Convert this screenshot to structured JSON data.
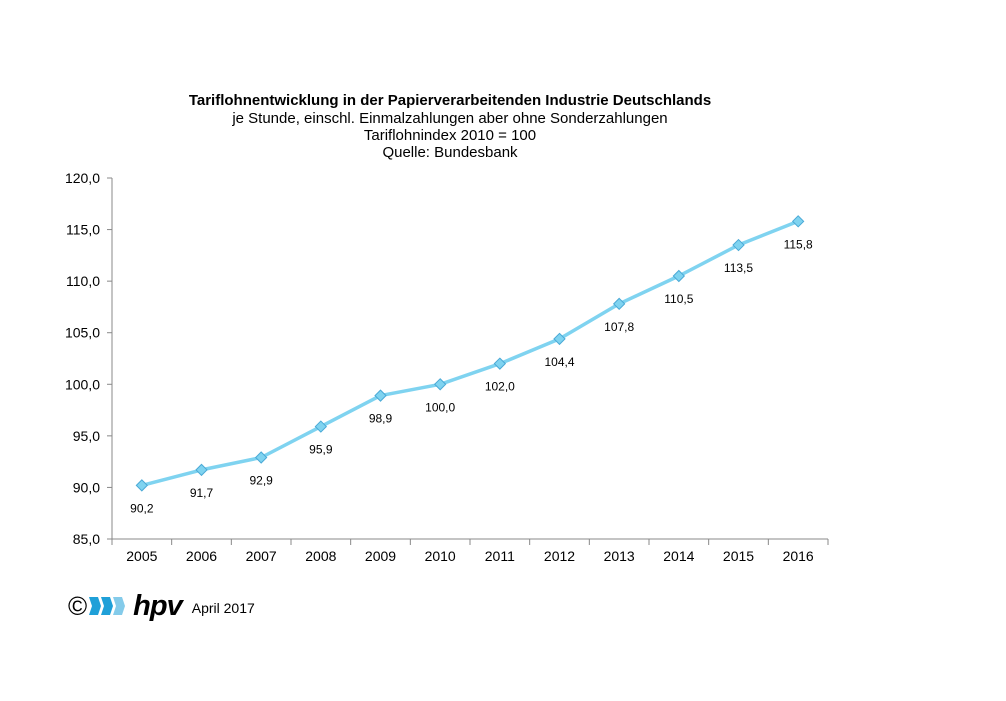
{
  "chart_data": {
    "type": "line",
    "title": "Tariflohnentwicklung  in der Papierverarbeitenden Industrie Deutschlands",
    "subtitles": [
      "je Stunde, einschl. Einmalzahlungen  aber ohne Sonderzahlungen",
      "Tariflohnindex  2010 = 100",
      "Quelle:  Bundesbank"
    ],
    "categories": [
      "2005",
      "2006",
      "2007",
      "2008",
      "2009",
      "2010",
      "2011",
      "2012",
      "2013",
      "2014",
      "2015",
      "2016"
    ],
    "values": [
      90.2,
      91.7,
      92.9,
      95.9,
      98.9,
      100.0,
      102.0,
      104.4,
      107.8,
      110.5,
      113.5,
      115.8
    ],
    "data_labels": [
      "90,2",
      "91,7",
      "92,9",
      "95,9",
      "98,9",
      "100,0",
      "102,0",
      "104,4",
      "107,8",
      "110,5",
      "113,5",
      "115,8"
    ],
    "ylim": [
      85,
      120
    ],
    "yticks": [
      "85,0",
      "90,0",
      "95,0",
      "100,0",
      "105,0",
      "110,0",
      "115,0",
      "120,0"
    ],
    "xlabel": "",
    "ylabel": "",
    "grid": false,
    "line_color": "#7fd3f0",
    "marker_color": "#7fd3f0"
  },
  "footer": {
    "copyright": "©",
    "logo_text": "hpv",
    "date": "April 2017",
    "logo_color": "#1fa0d8"
  }
}
